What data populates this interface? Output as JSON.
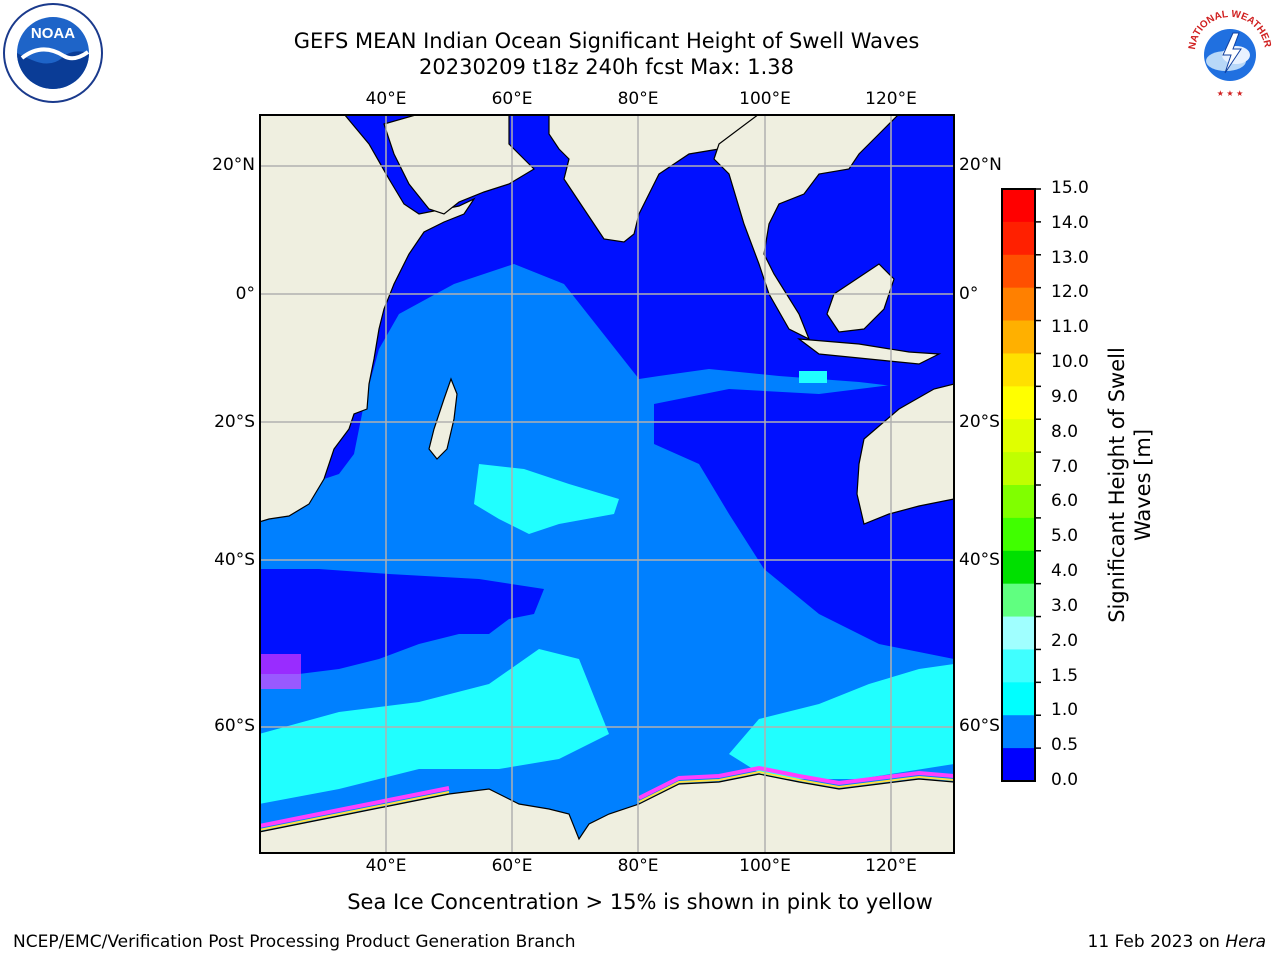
{
  "title": {
    "line1": "GEFS MEAN Indian Ocean Significant Height of Swell Waves",
    "line2": "20230209 t18z 240h fcst   Max: 1.38"
  },
  "axes": {
    "lon_ticks": [
      "40°E",
      "60°E",
      "80°E",
      "100°E",
      "120°E"
    ],
    "lat_ticks_left": [
      "20°N",
      "0°",
      "20°S",
      "40°S",
      "60°S"
    ],
    "lat_ticks_right": [
      "20°N",
      "0°",
      "20°S",
      "40°S",
      "60°S"
    ]
  },
  "colorbar": {
    "label_line1": "Significant Height of Swell",
    "label_line2": "Waves [m]",
    "ticks": [
      "15.0",
      "14.0",
      "13.0",
      "12.0",
      "11.0",
      "10.0",
      "9.0",
      "8.0",
      "7.0",
      "6.0",
      "5.0",
      "4.0",
      "3.0",
      "2.0",
      "1.5",
      "1.0",
      "0.5",
      "0.0"
    ],
    "colors": [
      "#ff0000",
      "#ff2000",
      "#ff5000",
      "#ff8000",
      "#ffb000",
      "#ffe000",
      "#ffff00",
      "#e0ff00",
      "#c0ff00",
      "#80ff00",
      "#40ff00",
      "#00e000",
      "#60ff80",
      "#a0ffff",
      "#40ffff",
      "#00ffff",
      "#0080ff",
      "#0000ff"
    ]
  },
  "map_colors": {
    "land": "#efefe0",
    "deep_blue": "#0010ff",
    "mid_blue": "#0080ff",
    "cyan": "#20ffff",
    "ice_pink": "#ff40ff",
    "grid": "#b0b0b0"
  },
  "logos": {
    "noaa_text": "NOAA",
    "nws_text": "NATIONAL WEATHER SERVICE"
  },
  "note": "Sea Ice Concentration > 15% is shown in pink to yellow",
  "footer": {
    "left": "NCEP/EMC/Verification Post Processing Product Generation Branch",
    "right_prefix": "11 Feb 2023 on ",
    "right_machine": "Hera"
  }
}
